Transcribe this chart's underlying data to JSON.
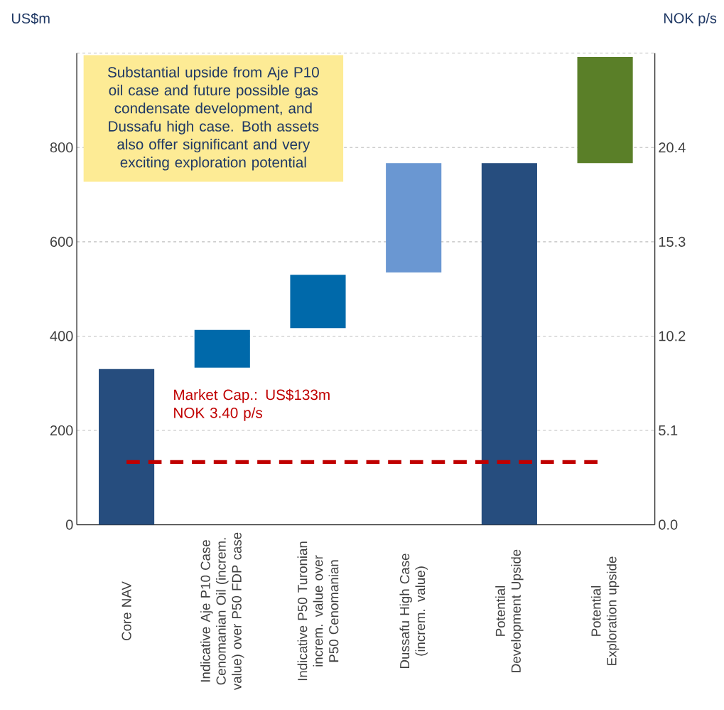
{
  "chart_data": {
    "type": "bar",
    "ylabel": "US$m",
    "y2label": "NOK p/s",
    "categories": [
      "Core NAV",
      "Indicative Aje P10 Case Cenomanian Oil (increm. value) over P50 FDP case",
      "Indicative P50 Turonian increm. value over P50 Cenomanian",
      "Dussafu High Case (increm. value)",
      "Potential Development Upside",
      "Potential Exploration upside"
    ],
    "values": [
      330,
      80,
      113,
      232,
      767,
      225
    ],
    "base": [
      0,
      333,
      417,
      535,
      0,
      767
    ],
    "colors": [
      "#264d7e",
      "#0069aa",
      "#0069aa",
      "#6a97d2",
      "#264d7e",
      "#5a7f28"
    ],
    "ylim": [
      0,
      1000
    ],
    "yticks": [
      0,
      200,
      400,
      600,
      800,
      {
        "value": 1000,
        "label": null
      }
    ],
    "y2lim": [
      0,
      25.5
    ],
    "y2ticks": [
      {
        "value": 0,
        "label": "0.0"
      },
      5.1,
      10.2,
      15.3,
      20.4
    ],
    "grid": "y",
    "ref_lines": [
      {
        "axis": "y",
        "value": 133,
        "label": "Market Cap.: US$133m NOK 3.40 p/s",
        "color": "#c00000",
        "line_style": "dashed"
      }
    ],
    "annotations": [
      "Substantial upside from Aje P10 oil case and future possible gas condensate development, and Dussafu high case. Both assets also offer significant and very exciting exploration potential"
    ]
  }
}
